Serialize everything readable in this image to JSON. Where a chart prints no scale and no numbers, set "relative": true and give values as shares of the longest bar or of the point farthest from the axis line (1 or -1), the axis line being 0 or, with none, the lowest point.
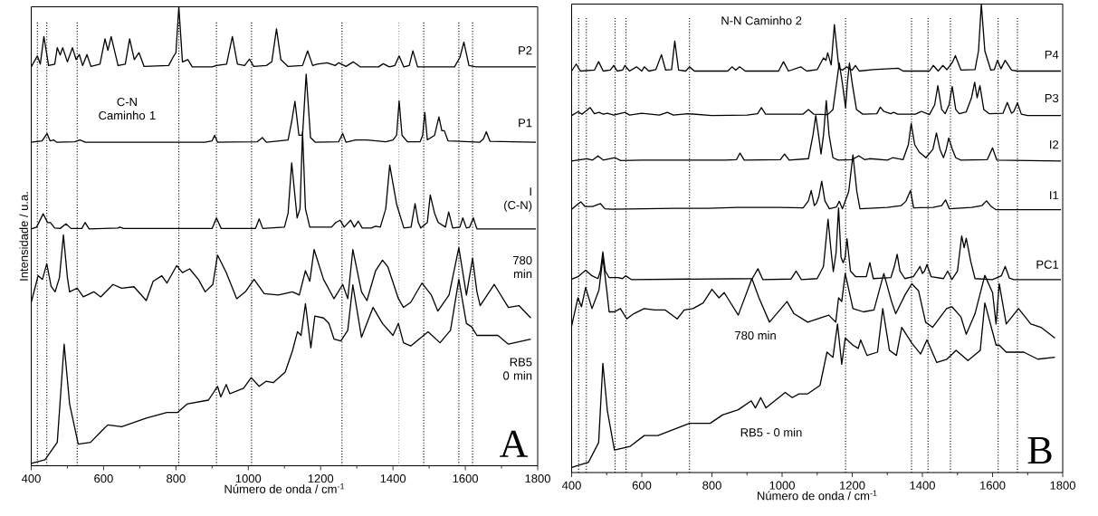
{
  "chart_data": [
    {
      "type": "line",
      "relative": true,
      "xlabel": "Número de onda / cm$^{-1}$",
      "ylabel": "Intensidade / u.a.",
      "xlim": [
        400,
        1800
      ],
      "xticks": [
        400,
        600,
        800,
        1000,
        1200,
        1400,
        1600,
        1800
      ],
      "series": [
        {
          "color": "#000000",
          "name": "P2",
          "x": [
            400,
            417,
            425,
            435,
            448,
            465,
            472,
            480,
            487,
            500,
            514,
            524,
            533,
            542,
            554,
            565,
            590,
            604,
            612,
            621,
            640,
            660,
            672,
            685,
            698,
            712,
            780,
            792,
            800,
            808,
            818,
            833,
            845,
            900,
            912,
            940,
            956,
            970,
            990,
            1003,
            1015,
            1050,
            1065,
            1078,
            1090,
            1110,
            1150,
            1164,
            1178,
            1190,
            1218,
            1240,
            1250,
            1270,
            1290,
            1310,
            1360,
            1373,
            1390,
            1405,
            1417,
            1430,
            1445,
            1455,
            1468,
            1570,
            1585,
            1596,
            1610,
            1630,
            1795
          ],
          "values": [
            0.869,
            0.893,
            0.875,
            0.935,
            0.872,
            0.875,
            0.911,
            0.895,
            0.911,
            0.88,
            0.911,
            0.885,
            0.896,
            0.872,
            0.896,
            0.87,
            0.875,
            0.93,
            0.905,
            0.935,
            0.872,
            0.875,
            0.93,
            0.885,
            0.9,
            0.87,
            0.872,
            0.89,
            0.9,
            1.0,
            0.88,
            0.885,
            0.869,
            0.869,
            0.872,
            0.875,
            0.935,
            0.875,
            0.872,
            0.886,
            0.87,
            0.872,
            0.88,
            0.952,
            0.885,
            0.87,
            0.872,
            0.904,
            0.872,
            0.875,
            0.878,
            0.872,
            0.878,
            0.87,
            0.88,
            0.869,
            0.869,
            0.876,
            0.869,
            0.872,
            0.893,
            0.869,
            0.872,
            0.904,
            0.869,
            0.869,
            0.89,
            0.923,
            0.872,
            0.869,
            0.869
          ]
        },
        {
          "color": "#000000",
          "name": "P1",
          "x": [
            400,
            430,
            444,
            452,
            462,
            470,
            520,
            535,
            550,
            880,
            900,
            907,
            915,
            1025,
            1039,
            1050,
            1110,
            1120,
            1129,
            1140,
            1150,
            1160,
            1172,
            1185,
            1250,
            1261,
            1270,
            1297,
            1328,
            1380,
            1400,
            1410,
            1417,
            1425,
            1440,
            1475,
            1482,
            1488,
            1495,
            1515,
            1527,
            1535,
            1542,
            1552,
            1640,
            1650,
            1658,
            1668,
            1795
          ],
          "values": [
            0.705,
            0.708,
            0.724,
            0.708,
            0.71,
            0.705,
            0.706,
            0.71,
            0.705,
            0.705,
            0.708,
            0.72,
            0.705,
            0.706,
            0.715,
            0.705,
            0.71,
            0.75,
            0.794,
            0.72,
            0.72,
            0.853,
            0.715,
            0.705,
            0.706,
            0.724,
            0.705,
            0.71,
            0.71,
            0.706,
            0.71,
            0.72,
            0.795,
            0.72,
            0.706,
            0.706,
            0.72,
            0.77,
            0.71,
            0.72,
            0.76,
            0.73,
            0.73,
            0.708,
            0.705,
            0.712,
            0.728,
            0.707,
            0.705
          ]
        },
        {
          "color": "#000000",
          "name": "I (C-N)",
          "x": [
            400,
            415,
            433,
            445,
            453,
            465,
            480,
            496,
            510,
            540,
            549,
            560,
            640,
            645,
            655,
            900,
            912,
            925,
            1020,
            1030,
            1040,
            1100,
            1110,
            1120,
            1135,
            1143,
            1150,
            1158,
            1170,
            1230,
            1242,
            1254,
            1265,
            1283,
            1293,
            1304,
            1315,
            1340,
            1352,
            1365,
            1380,
            1391,
            1401,
            1410,
            1430,
            1450,
            1461,
            1470,
            1477,
            1495,
            1503,
            1515,
            1525,
            1545,
            1554,
            1565,
            1585,
            1593,
            1603,
            1612,
            1622,
            1632,
            1795
          ],
          "values": [
            0.516,
            0.52,
            0.549,
            0.53,
            0.53,
            0.518,
            0.517,
            0.527,
            0.517,
            0.517,
            0.53,
            0.516,
            0.518,
            0.52,
            0.517,
            0.517,
            0.54,
            0.517,
            0.517,
            0.538,
            0.517,
            0.52,
            0.55,
            0.66,
            0.54,
            0.56,
            0.728,
            0.56,
            0.52,
            0.52,
            0.53,
            0.535,
            0.52,
            0.535,
            0.52,
            0.533,
            0.518,
            0.518,
            0.522,
            0.52,
            0.56,
            0.655,
            0.61,
            0.57,
            0.518,
            0.52,
            0.571,
            0.53,
            0.518,
            0.53,
            0.59,
            0.55,
            0.53,
            0.52,
            0.553,
            0.518,
            0.52,
            0.54,
            0.518,
            0.52,
            0.54,
            0.516,
            0.516
          ]
        },
        {
          "color": "#000000",
          "name": "780 min",
          "x": [
            400,
            419,
            431,
            443,
            455,
            466,
            478,
            489,
            500,
            506,
            527,
            544,
            573,
            592,
            626,
            650,
            684,
            718,
            737,
            761,
            775,
            802,
            818,
            838,
            862,
            881,
            902,
            915,
            939,
            968,
            992,
            1016,
            1044,
            1083,
            1122,
            1141,
            1158,
            1170,
            1182,
            1208,
            1237,
            1261,
            1275,
            1289,
            1313,
            1328,
            1352,
            1371,
            1386,
            1415,
            1429,
            1449,
            1480,
            1506,
            1524,
            1555,
            1582,
            1603,
            1620,
            1632,
            1641,
            1680,
            1719,
            1748,
            1781
          ],
          "values": [
            0.356,
            0.414,
            0.406,
            0.44,
            0.391,
            0.379,
            0.41,
            0.503,
            0.41,
            0.379,
            0.387,
            0.368,
            0.379,
            0.368,
            0.395,
            0.387,
            0.39,
            0.36,
            0.402,
            0.414,
            0.398,
            0.436,
            0.421,
            0.429,
            0.406,
            0.379,
            0.395,
            0.459,
            0.421,
            0.364,
            0.379,
            0.406,
            0.375,
            0.372,
            0.379,
            0.372,
            0.425,
            0.402,
            0.471,
            0.406,
            0.364,
            0.395,
            0.364,
            0.471,
            0.379,
            0.36,
            0.425,
            0.448,
            0.433,
            0.364,
            0.345,
            0.356,
            0.398,
            0.372,
            0.337,
            0.372,
            0.475,
            0.372,
            0.452,
            0.379,
            0.349,
            0.395,
            0.345,
            0.349,
            0.322
          ]
        },
        {
          "color": "#000000",
          "name": "RB5 0 min",
          "x": [
            400,
            438,
            472,
            491,
            506,
            530,
            564,
            602,
            612,
            650,
            718,
            775,
            804,
            832,
            890,
            915,
            924,
            939,
            949,
            987,
            1008,
            1030,
            1049,
            1069,
            1102,
            1122,
            1136,
            1146,
            1158,
            1173,
            1184,
            1208,
            1223,
            1237,
            1256,
            1275,
            1289,
            1313,
            1345,
            1371,
            1400,
            1415,
            1429,
            1449,
            1497,
            1530,
            1559,
            1582,
            1603,
            1617,
            1632,
            1690,
            1719,
            1781
          ],
          "values": [
            0.005,
            0.013,
            0.051,
            0.265,
            0.135,
            0.047,
            0.051,
            0.082,
            0.089,
            0.085,
            0.104,
            0.116,
            0.116,
            0.135,
            0.143,
            0.173,
            0.15,
            0.177,
            0.157,
            0.169,
            0.192,
            0.173,
            0.184,
            0.181,
            0.204,
            0.25,
            0.292,
            0.284,
            0.353,
            0.257,
            0.326,
            0.322,
            0.31,
            0.276,
            0.272,
            0.295,
            0.394,
            0.28,
            0.345,
            0.31,
            0.284,
            0.31,
            0.268,
            0.261,
            0.292,
            0.268,
            0.295,
            0.406,
            0.31,
            0.303,
            0.284,
            0.284,
            0.265,
            0.276
          ]
        }
      ],
      "ref_lines": [
        {
          "axis": "x",
          "value": 417,
          "color": "#000000",
          "line_style": "dotted"
        },
        {
          "axis": "x",
          "value": 443,
          "color": "#000000",
          "line_style": "dotted"
        },
        {
          "axis": "x",
          "value": 527,
          "color": "#000000",
          "line_style": "dotted"
        },
        {
          "axis": "x",
          "value": 808,
          "color": "#000000",
          "line_style": "dotted"
        },
        {
          "axis": "x",
          "value": 912,
          "color": "#000000",
          "line_style": "dotted"
        },
        {
          "axis": "x",
          "value": 1009,
          "color": "#000000",
          "line_style": "dotted"
        },
        {
          "axis": "x",
          "value": 1259,
          "color": "#000000",
          "line_style": "dotted"
        },
        {
          "axis": "x",
          "value": 1416,
          "color": "#a0a0a0",
          "line_style": "dotted"
        },
        {
          "axis": "x",
          "value": 1485,
          "color": "#000000",
          "line_style": "dotted"
        },
        {
          "axis": "x",
          "value": 1582,
          "color": "#000000",
          "line_style": "dotted"
        },
        {
          "axis": "x",
          "value": 1620,
          "color": "#000000",
          "line_style": "dotted"
        }
      ],
      "annotations": [
        "C-N Caminho 1",
        "A"
      ]
    },
    {
      "type": "line",
      "relative": true,
      "xlabel": "Número de onda / cm$^{-1}$",
      "xlim": [
        400,
        1800
      ],
      "xticks": [
        400,
        600,
        800,
        1000,
        1200,
        1400,
        1600,
        1800
      ],
      "series": [
        {
          "color": "#000000",
          "name": "P4",
          "x": [
            400,
            413,
            425,
            465,
            477,
            490,
            510,
            520,
            530,
            545,
            552,
            565,
            585,
            600,
            607,
            620,
            640,
            656,
            668,
            685,
            694,
            705,
            725,
            736,
            750,
            845,
            857,
            868,
            879,
            895,
            990,
            1004,
            1018,
            1053,
            1070,
            1100,
            1118,
            1125,
            1130,
            1140,
            1149,
            1162,
            1172,
            1184,
            1200,
            1209,
            1220,
            1260,
            1331,
            1345,
            1420,
            1431,
            1445,
            1458,
            1470,
            1485,
            1494,
            1510,
            1550,
            1560,
            1568,
            1578,
            1595,
            1605,
            1614,
            1624,
            1636,
            1654,
            1670,
            1795
          ],
          "values": [
            0.857,
            0.872,
            0.857,
            0.859,
            0.877,
            0.857,
            0.859,
            0.869,
            0.857,
            0.859,
            0.869,
            0.857,
            0.866,
            0.857,
            0.866,
            0.857,
            0.86,
            0.892,
            0.859,
            0.86,
            0.921,
            0.859,
            0.857,
            0.866,
            0.857,
            0.857,
            0.866,
            0.859,
            0.866,
            0.857,
            0.857,
            0.877,
            0.857,
            0.866,
            0.857,
            0.86,
            0.885,
            0.88,
            0.896,
            0.87,
            0.956,
            0.863,
            0.859,
            0.866,
            0.859,
            0.869,
            0.857,
            0.86,
            0.863,
            0.857,
            0.857,
            0.869,
            0.857,
            0.869,
            0.86,
            0.875,
            0.89,
            0.859,
            0.86,
            0.9,
            1.0,
            0.9,
            0.859,
            0.86,
            0.88,
            0.862,
            0.88,
            0.859,
            0.857,
            0.857
          ]
        },
        {
          "color": "#000000",
          "name": "P3",
          "x": [
            400,
            418,
            430,
            453,
            465,
            478,
            490,
            502,
            520,
            552,
            565,
            600,
            650,
            673,
            690,
            731,
            800,
            900,
            930,
            941,
            953,
            1060,
            1075,
            1090,
            1130,
            1145,
            1155,
            1163,
            1172,
            1181,
            1186,
            1192,
            1200,
            1212,
            1230,
            1270,
            1280,
            1290,
            1298,
            1310,
            1318,
            1330,
            1380,
            1397,
            1420,
            1435,
            1444,
            1455,
            1465,
            1476,
            1485,
            1495,
            1505,
            1525,
            1540,
            1549,
            1556,
            1564,
            1575,
            1590,
            1630,
            1642,
            1654,
            1660,
            1671,
            1682,
            1700,
            1795
          ],
          "values": [
            0.762,
            0.77,
            0.765,
            0.779,
            0.766,
            0.769,
            0.765,
            0.767,
            0.763,
            0.769,
            0.763,
            0.767,
            0.763,
            0.769,
            0.763,
            0.766,
            0.762,
            0.763,
            0.766,
            0.779,
            0.765,
            0.765,
            0.775,
            0.765,
            0.764,
            0.775,
            0.83,
            0.874,
            0.83,
            0.779,
            0.83,
            0.874,
            0.83,
            0.775,
            0.765,
            0.766,
            0.78,
            0.771,
            0.769,
            0.766,
            0.769,
            0.765,
            0.765,
            0.771,
            0.764,
            0.785,
            0.826,
            0.775,
            0.766,
            0.785,
            0.824,
            0.775,
            0.766,
            0.77,
            0.8,
            0.833,
            0.8,
            0.826,
            0.775,
            0.766,
            0.767,
            0.79,
            0.767,
            0.77,
            0.789,
            0.765,
            0.762,
            0.762
          ]
        },
        {
          "color": "#000000",
          "name": "I2",
          "x": [
            400,
            443,
            460,
            475,
            490,
            524,
            540,
            602,
            660,
            838,
            870,
            880,
            892,
            995,
            1007,
            1020,
            1075,
            1088,
            1096,
            1104,
            1111,
            1118,
            1126,
            1134,
            1145,
            1160,
            1200,
            1219,
            1235,
            1250,
            1300,
            1315,
            1345,
            1360,
            1368,
            1378,
            1391,
            1410,
            1430,
            1440,
            1450,
            1460,
            1468,
            1475,
            1485,
            1495,
            1510,
            1585,
            1600,
            1612,
            1795
          ],
          "values": [
            0.665,
            0.67,
            0.667,
            0.676,
            0.667,
            0.672,
            0.666,
            0.667,
            0.667,
            0.667,
            0.668,
            0.682,
            0.667,
            0.668,
            0.68,
            0.667,
            0.67,
            0.72,
            0.762,
            0.72,
            0.68,
            0.72,
            0.794,
            0.72,
            0.672,
            0.667,
            0.668,
            0.676,
            0.668,
            0.67,
            0.667,
            0.672,
            0.668,
            0.7,
            0.745,
            0.7,
            0.684,
            0.672,
            0.69,
            0.725,
            0.69,
            0.672,
            0.69,
            0.714,
            0.691,
            0.672,
            0.667,
            0.668,
            0.693,
            0.667,
            0.665
          ]
        },
        {
          "color": "#000000",
          "name": "I1",
          "x": [
            400,
            413,
            426,
            438,
            460,
            482,
            495,
            515,
            694,
            788,
            872,
            992,
            1060,
            1075,
            1083,
            1092,
            1098,
            1105,
            1113,
            1122,
            1135,
            1155,
            1163,
            1172,
            1190,
            1202,
            1213,
            1222,
            1300,
            1340,
            1353,
            1366,
            1375,
            1430,
            1455,
            1466,
            1477,
            1540,
            1570,
            1583,
            1596,
            1610,
            1795
          ],
          "values": [
            0.562,
            0.57,
            0.578,
            0.568,
            0.568,
            0.574,
            0.563,
            0.562,
            0.564,
            0.564,
            0.566,
            0.566,
            0.565,
            0.58,
            0.602,
            0.57,
            0.575,
            0.59,
            0.622,
            0.58,
            0.563,
            0.567,
            0.579,
            0.563,
            0.6,
            0.678,
            0.6,
            0.563,
            0.566,
            0.57,
            0.579,
            0.602,
            0.565,
            0.566,
            0.57,
            0.582,
            0.563,
            0.566,
            0.57,
            0.58,
            0.568,
            0.561,
            0.561
          ]
        },
        {
          "color": "#000000",
          "name": "PC1",
          "x": [
            400,
            418,
            440,
            458,
            475,
            482,
            489,
            496,
            507,
            532,
            545,
            554,
            570,
            915,
            931,
            945,
            1025,
            1040,
            1055,
            1100,
            1118,
            1131,
            1140,
            1146,
            1154,
            1161,
            1168,
            1174,
            1180,
            1185,
            1195,
            1210,
            1225,
            1240,
            1250,
            1260,
            1310,
            1320,
            1328,
            1336,
            1350,
            1374,
            1385,
            1393,
            1400,
            1406,
            1413,
            1425,
            1460,
            1472,
            1484,
            1500,
            1512,
            1519,
            1525,
            1538,
            1550,
            1600,
            1625,
            1636,
            1648,
            1660,
            1795
          ],
          "values": [
            0.413,
            0.418,
            0.432,
            0.42,
            0.414,
            0.43,
            0.471,
            0.43,
            0.416,
            0.416,
            0.414,
            0.42,
            0.412,
            0.414,
            0.435,
            0.412,
            0.413,
            0.43,
            0.412,
            0.414,
            0.44,
            0.541,
            0.47,
            0.429,
            0.47,
            0.565,
            0.46,
            0.448,
            0.46,
            0.499,
            0.43,
            0.418,
            0.418,
            0.418,
            0.448,
            0.414,
            0.416,
            0.44,
            0.466,
            0.43,
            0.414,
            0.418,
            0.43,
            0.44,
            0.425,
            0.43,
            0.444,
            0.418,
            0.414,
            0.43,
            0.412,
            0.43,
            0.505,
            0.48,
            0.5,
            0.45,
            0.414,
            0.412,
            0.42,
            0.44,
            0.415,
            0.412,
            0.412
          ]
        },
        {
          "color": "#000000",
          "name": "780 min",
          "x": [
            400,
            418,
            428,
            440,
            458,
            478,
            489,
            500,
            507,
            522,
            539,
            557,
            577,
            607,
            636,
            667,
            701,
            721,
            746,
            775,
            800,
            820,
            835,
            875,
            914,
            934,
            964,
            1014,
            1034,
            1073,
            1133,
            1153,
            1161,
            1170,
            1180,
            1202,
            1232,
            1262,
            1290,
            1312,
            1324,
            1351,
            1370,
            1389,
            1409,
            1429,
            1469,
            1484,
            1510,
            1525,
            1550,
            1578,
            1600,
            1610,
            1619,
            1639,
            1674,
            1709,
            1738,
            1778
          ],
          "values": [
            0.313,
            0.373,
            0.354,
            0.395,
            0.35,
            0.39,
            0.459,
            0.39,
            0.343,
            0.343,
            0.35,
            0.328,
            0.339,
            0.35,
            0.347,
            0.347,
            0.328,
            0.347,
            0.35,
            0.362,
            0.391,
            0.373,
            0.384,
            0.336,
            0.414,
            0.373,
            0.321,
            0.365,
            0.339,
            0.321,
            0.336,
            0.321,
            0.373,
            0.365,
            0.425,
            0.35,
            0.343,
            0.347,
            0.425,
            0.365,
            0.339,
            0.38,
            0.403,
            0.388,
            0.321,
            0.31,
            0.35,
            0.354,
            0.332,
            0.295,
            0.339,
            0.421,
            0.384,
            0.317,
            0.403,
            0.317,
            0.35,
            0.317,
            0.31,
            0.287
          ]
        },
        {
          "color": "#000000",
          "name": "RB5 - 0 min",
          "x": [
            400,
            448,
            477,
            489,
            502,
            522,
            567,
            607,
            646,
            736,
            795,
            830,
            875,
            912,
            924,
            939,
            954,
            1009,
            1029,
            1048,
            1073,
            1108,
            1128,
            1145,
            1158,
            1170,
            1180,
            1202,
            1217,
            1224,
            1242,
            1272,
            1287,
            1306,
            1326,
            1341,
            1370,
            1395,
            1413,
            1441,
            1470,
            1496,
            1530,
            1565,
            1578,
            1610,
            1619,
            1639,
            1689,
            1729,
            1778
          ],
          "values": [
            0.011,
            0.022,
            0.064,
            0.233,
            0.131,
            0.048,
            0.056,
            0.079,
            0.079,
            0.105,
            0.105,
            0.123,
            0.134,
            0.153,
            0.138,
            0.16,
            0.138,
            0.171,
            0.16,
            0.168,
            0.168,
            0.186,
            0.257,
            0.246,
            0.317,
            0.231,
            0.287,
            0.272,
            0.265,
            0.283,
            0.25,
            0.257,
            0.35,
            0.261,
            0.25,
            0.31,
            0.276,
            0.253,
            0.283,
            0.235,
            0.242,
            0.261,
            0.239,
            0.261,
            0.362,
            0.272,
            0.272,
            0.257,
            0.257,
            0.242,
            0.246
          ]
        }
      ],
      "ref_lines": [
        {
          "axis": "x",
          "value": 420,
          "color": "#000000",
          "line_style": "dotted"
        },
        {
          "axis": "x",
          "value": 442,
          "color": "#000000",
          "line_style": "dotted"
        },
        {
          "axis": "x",
          "value": 524,
          "color": "#000000",
          "line_style": "dotted"
        },
        {
          "axis": "x",
          "value": 555,
          "color": "#000000",
          "line_style": "dotted"
        },
        {
          "axis": "x",
          "value": 736,
          "color": "#000000",
          "line_style": "dotted"
        },
        {
          "axis": "x",
          "value": 1181,
          "color": "#000000",
          "line_style": "dotted"
        },
        {
          "axis": "x",
          "value": 1369,
          "color": "#000000",
          "line_style": "dotted"
        },
        {
          "axis": "x",
          "value": 1416,
          "color": "#000000",
          "line_style": "dotted"
        },
        {
          "axis": "x",
          "value": 1480,
          "color": "#000000",
          "line_style": "dotted"
        },
        {
          "axis": "x",
          "value": 1616,
          "color": "#000000",
          "line_style": "dotted"
        },
        {
          "axis": "x",
          "value": 1671,
          "color": "#000000",
          "line_style": "dotted"
        }
      ],
      "annotations": [
        "N-N Caminho 2",
        "B"
      ]
    }
  ]
}
